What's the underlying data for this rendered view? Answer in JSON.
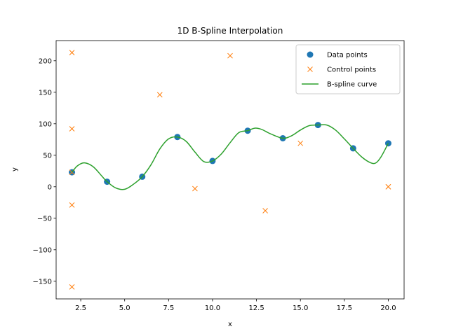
{
  "chart_data": {
    "type": "line",
    "title": "1D B-Spline Interpolation",
    "xlabel": "x",
    "ylabel": "y",
    "xlim": [
      1.1,
      20.9
    ],
    "ylim": [
      -178,
      232
    ],
    "xticks": [
      2.5,
      5.0,
      7.5,
      10.0,
      12.5,
      15.0,
      17.5,
      20.0
    ],
    "xtick_labels": [
      "2.5",
      "5.0",
      "7.5",
      "10.0",
      "12.5",
      "15.0",
      "17.5",
      "20.0"
    ],
    "yticks": [
      -150,
      -100,
      -50,
      0,
      50,
      100,
      150,
      200
    ],
    "ytick_labels": [
      "−150",
      "−100",
      "−50",
      "0",
      "50",
      "100",
      "150",
      "200"
    ],
    "grid": false,
    "legend_position": "upper right",
    "legend": [
      "Data points",
      "Control points",
      "B-spline curve"
    ],
    "series": [
      {
        "name": "Data points",
        "kind": "marker-circle",
        "color": "#1f77b4",
        "x": [
          2,
          4,
          6,
          8,
          10,
          12,
          14,
          16,
          18,
          20
        ],
        "y": [
          23,
          8,
          16,
          79,
          41,
          89,
          77,
          98,
          61,
          69
        ]
      },
      {
        "name": "Control points",
        "kind": "marker-x",
        "color": "#ff7f0e",
        "x": [
          2,
          2,
          2,
          2,
          2,
          7,
          9,
          11,
          13,
          15,
          20,
          20
        ],
        "y": [
          213,
          92,
          23,
          -29,
          -159,
          146,
          -3,
          208,
          -38,
          69,
          0,
          0
        ]
      },
      {
        "name": "B-spline curve",
        "kind": "line",
        "color": "#2ca02c",
        "x": [
          2,
          2.3,
          2.7,
          3.2,
          3.7,
          4,
          4.5,
          5,
          5.5,
          6,
          6.5,
          7,
          7.5,
          8,
          8.5,
          9,
          9.5,
          10,
          10.5,
          11,
          11.5,
          12,
          12.4,
          12.8,
          13.3,
          14,
          14.5,
          15,
          15.5,
          16,
          16.5,
          17,
          17.5,
          18,
          18.5,
          19,
          19.3,
          19.6,
          20
        ],
        "y": [
          23,
          33,
          38,
          32,
          17,
          8,
          -2,
          -4,
          4,
          16,
          35,
          60,
          76,
          79,
          72,
          55,
          40,
          41,
          52,
          70,
          86,
          89,
          93,
          91,
          84,
          77,
          81,
          90,
          97,
          98,
          98,
          90,
          76,
          61,
          47,
          38,
          38,
          48,
          69
        ]
      }
    ]
  }
}
